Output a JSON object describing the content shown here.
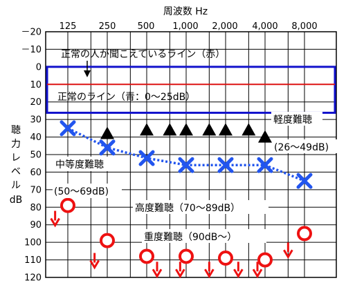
{
  "chart_data": {
    "type": "scatter",
    "title": "周波数 Hz",
    "ylabel": "聴力レベル dB",
    "ylabel_chars": [
      "聴",
      "力",
      "レ",
      "ベ",
      "ル"
    ],
    "ylabel_unit": "dB",
    "categories": [
      "125",
      "250",
      "500",
      "1,000",
      "2,000",
      "4,000",
      "8,000"
    ],
    "y_ticks": [
      "－20",
      "－10",
      "0",
      "10",
      "20",
      "30",
      "40",
      "50",
      "60",
      "70",
      "80",
      "90",
      "100",
      "110",
      "120"
    ],
    "ylim": [
      -20,
      120
    ],
    "y_inverted": true,
    "grid": true,
    "series": [
      {
        "marker": "x",
        "color": "#2255ee",
        "connected": true,
        "points": [
          [
            "125",
            35
          ],
          [
            "250",
            46
          ],
          [
            "500",
            52
          ],
          [
            "1,000",
            56
          ],
          [
            "2,000",
            56
          ],
          [
            "4,000",
            56
          ],
          [
            "8,000",
            65
          ]
        ]
      },
      {
        "marker": "triangle",
        "color": "#000000",
        "connected": false,
        "points": [
          [
            "250",
            38
          ],
          [
            "500",
            36
          ],
          [
            "750",
            36
          ],
          [
            "1,000",
            36
          ],
          [
            "1,500",
            36
          ],
          [
            "2,000",
            36
          ],
          [
            "3,000",
            36
          ],
          [
            "4,000",
            40
          ]
        ]
      },
      {
        "marker": "circle",
        "color": "#ee1111",
        "connected": false,
        "points": [
          [
            "125",
            79
          ],
          [
            "250",
            99
          ],
          [
            "500",
            108
          ],
          [
            "1,000",
            108
          ],
          [
            "2,000",
            109
          ],
          [
            "4,000",
            110
          ],
          [
            "8,000",
            95
          ]
        ]
      },
      {
        "marker": "arrow-down",
        "color": "#ee1111",
        "connected": false,
        "points": [
          [
            "100",
            86
          ],
          [
            "200",
            110
          ],
          [
            "600",
            115
          ],
          [
            "900",
            115
          ],
          [
            "1,500",
            115
          ],
          [
            "2,500",
            115
          ],
          [
            "3,500",
            115
          ],
          [
            "6,000",
            104
          ]
        ]
      }
    ],
    "normal_line": {
      "value": 10,
      "color": "#dd1111"
    },
    "normal_range": {
      "from": 0,
      "to": 25,
      "color": "#1111cc"
    },
    "annotations": {
      "normal_person": "正常の人が聞こえているライン（赤）",
      "normal_range": "正常のライン（青：0～25dB）",
      "mild": "軽度難聴",
      "mild_range": "(26～49dB)",
      "moderate": "中等度難聴",
      "moderate_range": "(50～69dB)",
      "severe": "高度難聴（70～89dB）",
      "profound": "重度難聴（90dB～）"
    }
  }
}
